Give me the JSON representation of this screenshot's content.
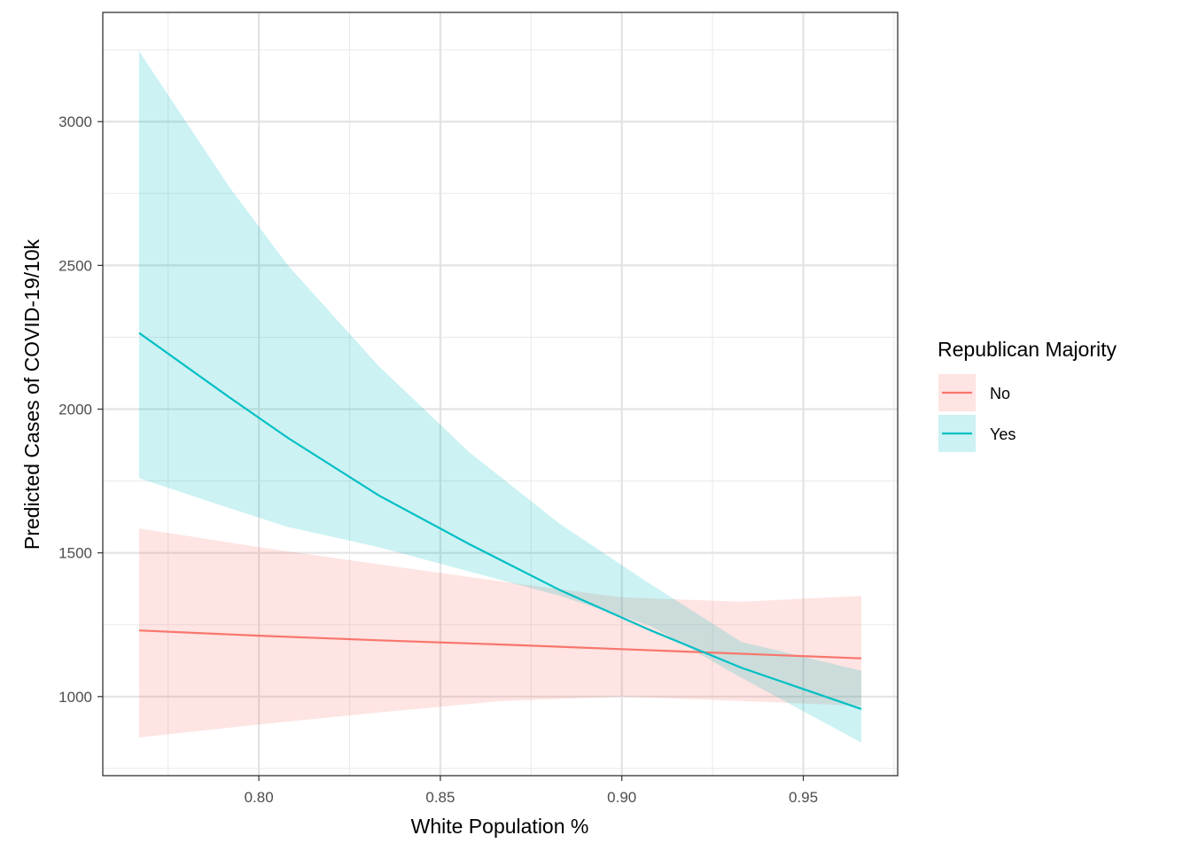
{
  "chart_data": {
    "type": "line",
    "xlabel": "White Population %",
    "ylabel": "Predicted Cases of COVID-19/10k",
    "xlim": [
      0.757,
      0.976
    ],
    "ylim": [
      725,
      3380
    ],
    "x_ticks": [
      0.8,
      0.85,
      0.9,
      0.95
    ],
    "x_tick_labels": [
      "0.80",
      "0.85",
      "0.90",
      "0.95"
    ],
    "y_ticks": [
      1000,
      1500,
      2000,
      2500,
      3000
    ],
    "y_tick_labels": [
      "1000",
      "1500",
      "2000",
      "2500",
      "3000"
    ],
    "grid": true,
    "legend": {
      "title": "Republican Majority",
      "position": "right"
    },
    "series": [
      {
        "name": "No",
        "color": "#F8766D",
        "x": [
          0.767,
          0.8,
          0.833,
          0.867,
          0.9,
          0.933,
          0.966
        ],
        "y": [
          1230,
          1212,
          1196,
          1181,
          1165,
          1149,
          1133
        ],
        "lower": [
          858,
          903,
          945,
          985,
          1000,
          985,
          968
        ],
        "upper": [
          1585,
          1520,
          1460,
          1400,
          1345,
          1330,
          1350
        ]
      },
      {
        "name": "Yes",
        "color": "#00BFC4",
        "x": [
          0.767,
          0.792,
          0.808,
          0.833,
          0.858,
          0.883,
          0.908,
          0.933,
          0.966
        ],
        "y": [
          2265,
          2040,
          1900,
          1700,
          1530,
          1370,
          1230,
          1100,
          957
        ],
        "lower": [
          1760,
          1655,
          1590,
          1520,
          1435,
          1350,
          1245,
          1065,
          840
        ],
        "upper": [
          3245,
          2770,
          2500,
          2150,
          1850,
          1600,
          1390,
          1190,
          1090
        ]
      }
    ]
  }
}
